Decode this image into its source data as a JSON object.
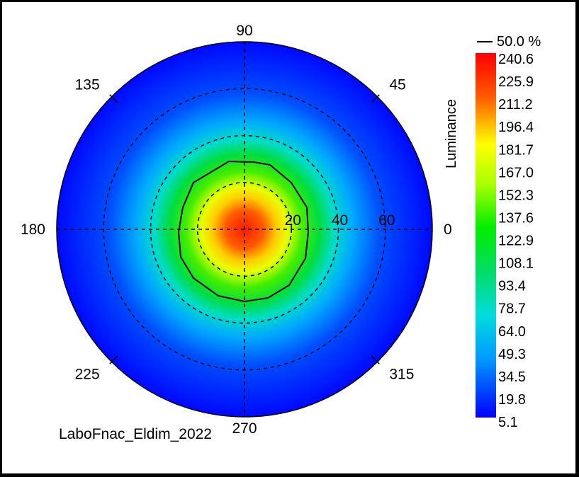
{
  "chart_data": {
    "type": "heatmap",
    "projection": "polar",
    "angle_labels": [
      "0",
      "45",
      "90",
      "135",
      "180",
      "225",
      "270",
      "315"
    ],
    "radial_ticks": [
      "20",
      "40",
      "60"
    ],
    "radial_max": 80,
    "colorbar": {
      "label": "Luminance",
      "contour_legend": "50.0 %",
      "ticks": [
        "240.6",
        "225.9",
        "211.2",
        "196.4",
        "181.7",
        "167.0",
        "152.3",
        "137.6",
        "122.9",
        "108.1",
        "93.4",
        "78.7",
        "64.0",
        "49.3",
        "34.5",
        "19.8",
        "5.1"
      ],
      "min": 5.1,
      "max": 240.6
    },
    "peak_value": 240.6,
    "contour_level_percent": 50.0,
    "grid": true,
    "footer_text": "LaboFnac_Eldim_2022"
  },
  "colors": {
    "max": "#ff0000",
    "high": "#ffff00",
    "mid": "#00dd00",
    "low_mid": "#00dddd",
    "min": "#0000ff"
  }
}
